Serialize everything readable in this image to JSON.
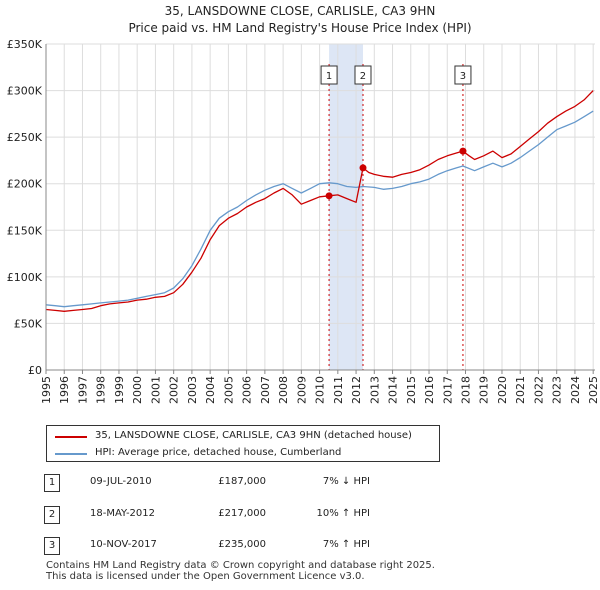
{
  "chart_data": {
    "type": "line",
    "title": "35, LANSDOWNE CLOSE, CARLISLE, CA3 9HN",
    "subtitle": "Price paid vs. HM Land Registry's House Price Index (HPI)",
    "ylim": [
      0,
      350000
    ],
    "xlim": [
      1995,
      2025.1
    ],
    "y_ticks": [
      {
        "value": 0,
        "label": "£0"
      },
      {
        "value": 50000,
        "label": "£50K"
      },
      {
        "value": 100000,
        "label": "£100K"
      },
      {
        "value": 150000,
        "label": "£150K"
      },
      {
        "value": 200000,
        "label": "£200K"
      },
      {
        "value": 250000,
        "label": "£250K"
      },
      {
        "value": 300000,
        "label": "£300K"
      },
      {
        "value": 350000,
        "label": "£350K"
      }
    ],
    "x_ticks": [
      1995,
      1996,
      1997,
      1998,
      1999,
      2000,
      2001,
      2002,
      2003,
      2004,
      2005,
      2006,
      2007,
      2008,
      2009,
      2010,
      2011,
      2012,
      2013,
      2014,
      2015,
      2016,
      2017,
      2018,
      2019,
      2020,
      2021,
      2022,
      2023,
      2024,
      2025
    ],
    "shaded_ranges": [
      [
        2010.52,
        2012.38
      ]
    ],
    "series": [
      {
        "name": "35, LANSDOWNE CLOSE, CARLISLE, CA3 9HN (detached house)",
        "color": "#cc0000",
        "points": [
          [
            1995.0,
            65000
          ],
          [
            1995.5,
            64000
          ],
          [
            1996.0,
            63000
          ],
          [
            1996.5,
            64000
          ],
          [
            1997.0,
            65000
          ],
          [
            1997.5,
            66000
          ],
          [
            1998.0,
            69000
          ],
          [
            1998.5,
            71000
          ],
          [
            1999.0,
            72000
          ],
          [
            1999.5,
            73000
          ],
          [
            2000.0,
            75000
          ],
          [
            2000.5,
            76000
          ],
          [
            2001.0,
            78000
          ],
          [
            2001.5,
            79000
          ],
          [
            2002.0,
            83000
          ],
          [
            2002.5,
            92000
          ],
          [
            2003.0,
            105000
          ],
          [
            2003.5,
            120000
          ],
          [
            2004.0,
            140000
          ],
          [
            2004.5,
            155000
          ],
          [
            2005.0,
            163000
          ],
          [
            2005.5,
            168000
          ],
          [
            2006.0,
            175000
          ],
          [
            2006.5,
            180000
          ],
          [
            2007.0,
            184000
          ],
          [
            2007.5,
            190000
          ],
          [
            2008.0,
            195000
          ],
          [
            2008.5,
            188000
          ],
          [
            2009.0,
            178000
          ],
          [
            2009.5,
            182000
          ],
          [
            2010.0,
            186000
          ],
          [
            2010.52,
            187000
          ],
          [
            2011.0,
            188000
          ],
          [
            2011.5,
            184000
          ],
          [
            2012.0,
            180000
          ],
          [
            2012.38,
            217000
          ],
          [
            2012.7,
            212000
          ],
          [
            2013.0,
            210000
          ],
          [
            2013.5,
            208000
          ],
          [
            2014.0,
            207000
          ],
          [
            2014.5,
            210000
          ],
          [
            2015.0,
            212000
          ],
          [
            2015.5,
            215000
          ],
          [
            2016.0,
            220000
          ],
          [
            2016.5,
            226000
          ],
          [
            2017.0,
            230000
          ],
          [
            2017.5,
            233000
          ],
          [
            2017.86,
            235000
          ],
          [
            2018.2,
            230000
          ],
          [
            2018.5,
            226000
          ],
          [
            2019.0,
            230000
          ],
          [
            2019.5,
            235000
          ],
          [
            2020.0,
            228000
          ],
          [
            2020.5,
            232000
          ],
          [
            2021.0,
            240000
          ],
          [
            2021.5,
            248000
          ],
          [
            2022.0,
            256000
          ],
          [
            2022.5,
            265000
          ],
          [
            2023.0,
            272000
          ],
          [
            2023.5,
            278000
          ],
          [
            2024.0,
            283000
          ],
          [
            2024.5,
            290000
          ],
          [
            2025.0,
            300000
          ]
        ]
      },
      {
        "name": "HPI: Average price, detached house, Cumberland",
        "color": "#6699cc",
        "points": [
          [
            1995.0,
            70000
          ],
          [
            1995.5,
            69000
          ],
          [
            1996.0,
            68000
          ],
          [
            1996.5,
            69000
          ],
          [
            1997.0,
            70000
          ],
          [
            1997.5,
            71000
          ],
          [
            1998.0,
            72000
          ],
          [
            1998.5,
            73000
          ],
          [
            1999.0,
            74000
          ],
          [
            1999.5,
            75000
          ],
          [
            2000.0,
            77000
          ],
          [
            2000.5,
            79000
          ],
          [
            2001.0,
            81000
          ],
          [
            2001.5,
            83000
          ],
          [
            2002.0,
            88000
          ],
          [
            2002.5,
            98000
          ],
          [
            2003.0,
            112000
          ],
          [
            2003.5,
            130000
          ],
          [
            2004.0,
            150000
          ],
          [
            2004.5,
            163000
          ],
          [
            2005.0,
            170000
          ],
          [
            2005.5,
            175000
          ],
          [
            2006.0,
            182000
          ],
          [
            2006.5,
            188000
          ],
          [
            2007.0,
            193000
          ],
          [
            2007.5,
            197000
          ],
          [
            2008.0,
            200000
          ],
          [
            2008.5,
            195000
          ],
          [
            2009.0,
            190000
          ],
          [
            2009.5,
            195000
          ],
          [
            2010.0,
            200000
          ],
          [
            2010.52,
            201000
          ],
          [
            2011.0,
            200000
          ],
          [
            2011.5,
            197000
          ],
          [
            2012.0,
            196000
          ],
          [
            2012.38,
            197000
          ],
          [
            2013.0,
            196000
          ],
          [
            2013.5,
            194000
          ],
          [
            2014.0,
            195000
          ],
          [
            2014.5,
            197000
          ],
          [
            2015.0,
            200000
          ],
          [
            2015.5,
            202000
          ],
          [
            2016.0,
            205000
          ],
          [
            2016.5,
            210000
          ],
          [
            2017.0,
            214000
          ],
          [
            2017.5,
            217000
          ],
          [
            2017.86,
            219000
          ],
          [
            2018.5,
            214000
          ],
          [
            2019.0,
            218000
          ],
          [
            2019.5,
            222000
          ],
          [
            2020.0,
            218000
          ],
          [
            2020.5,
            222000
          ],
          [
            2021.0,
            228000
          ],
          [
            2021.5,
            235000
          ],
          [
            2022.0,
            242000
          ],
          [
            2022.5,
            250000
          ],
          [
            2023.0,
            258000
          ],
          [
            2023.5,
            262000
          ],
          [
            2024.0,
            266000
          ],
          [
            2024.5,
            272000
          ],
          [
            2025.0,
            278000
          ]
        ]
      }
    ],
    "sales": [
      {
        "marker": "1",
        "x": 2010.52,
        "price": 187000
      },
      {
        "marker": "2",
        "x": 2012.38,
        "price": 217000
      },
      {
        "marker": "3",
        "x": 2017.86,
        "price": 235000
      }
    ]
  },
  "legend": {
    "property": "35, LANSDOWNE CLOSE, CARLISLE, CA3 9HN (detached house)",
    "hpi": "HPI: Average price, detached house, Cumberland"
  },
  "sales_table": [
    {
      "num": "1",
      "date": "09-JUL-2010",
      "price": "£187,000",
      "hpi": "7% ↓ HPI"
    },
    {
      "num": "2",
      "date": "18-MAY-2012",
      "price": "£217,000",
      "hpi": "10% ↑ HPI"
    },
    {
      "num": "3",
      "date": "10-NOV-2017",
      "price": "£235,000",
      "hpi": "7% ↑ HPI"
    }
  ],
  "footer": {
    "line1": "Contains HM Land Registry data © Crown copyright and database right 2025.",
    "line2": "This data is licensed under the Open Government Licence v3.0."
  }
}
